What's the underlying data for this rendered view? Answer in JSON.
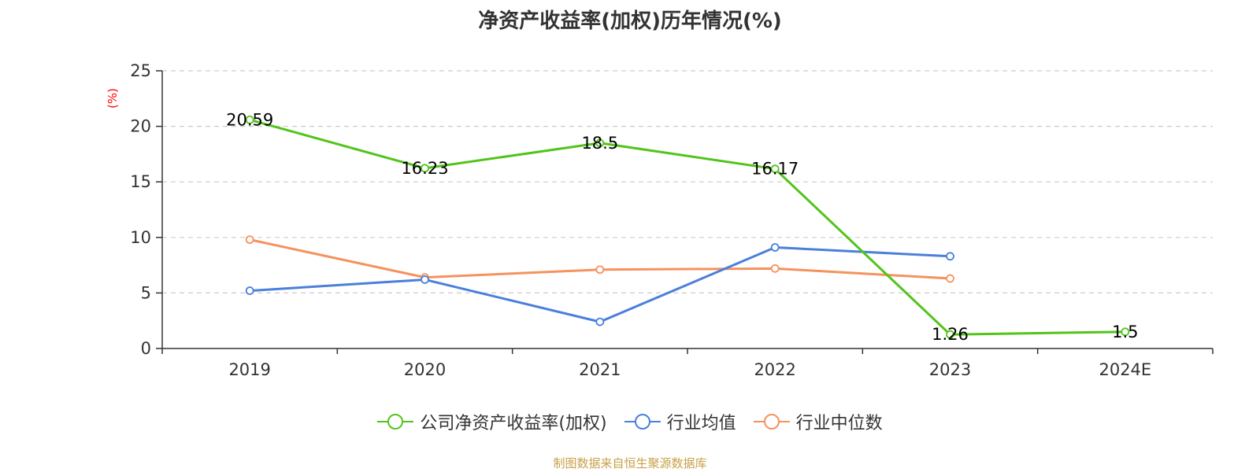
{
  "title": "净资产收益率(加权)历年情况(%)",
  "footer": "制图数据来自恒生聚源数据库",
  "chart_data": {
    "type": "line",
    "title": "净资产收益率(加权)历年情况(%)",
    "xlabel": "",
    "ylabel": "(%)",
    "categories": [
      "2019",
      "2020",
      "2021",
      "2022",
      "2023",
      "2024E"
    ],
    "ylim": [
      0,
      25
    ],
    "yticks": [
      0,
      5,
      10,
      15,
      20,
      25
    ],
    "grid": true,
    "legend_position": "bottom",
    "series": [
      {
        "name": "公司净资产收益率(加权)",
        "color": "#52c41a",
        "values": [
          20.59,
          16.23,
          18.5,
          16.17,
          1.26,
          1.5
        ],
        "labels": [
          "20.59",
          "16.23",
          "18.5",
          "16.17",
          "1.26",
          "1.5"
        ]
      },
      {
        "name": "行业均值",
        "color": "#4a7fdc",
        "values": [
          5.2,
          6.2,
          2.4,
          9.1,
          8.3,
          null
        ]
      },
      {
        "name": "行业中位数",
        "color": "#f5925e",
        "values": [
          9.8,
          6.4,
          7.1,
          7.2,
          6.3,
          null
        ]
      }
    ]
  }
}
